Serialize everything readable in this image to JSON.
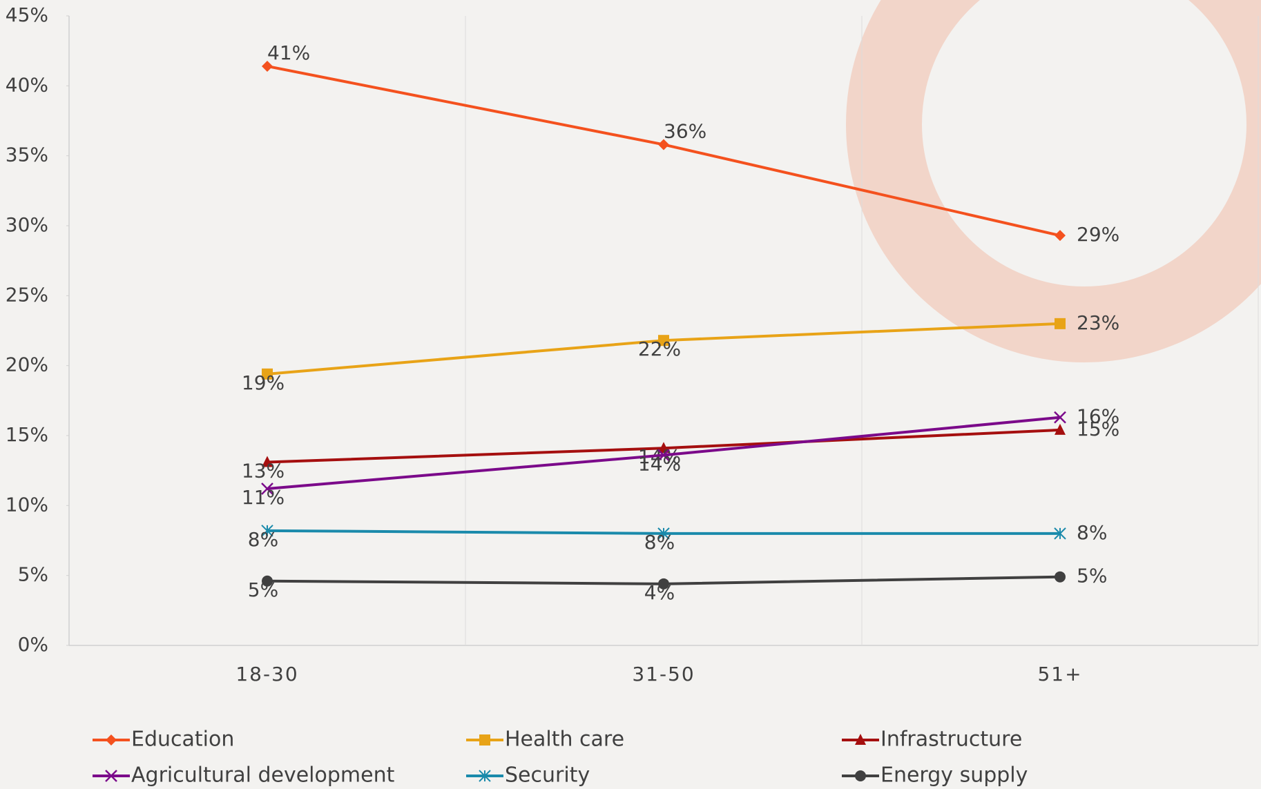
{
  "chart_data": {
    "type": "line",
    "categories": [
      "18-30",
      "31-50",
      "51+"
    ],
    "ylim": [
      0,
      45
    ],
    "yticks": [
      {
        "value": 0,
        "label": "0%"
      },
      {
        "value": 5,
        "label": "5%"
      },
      {
        "value": 10,
        "label": "10%"
      },
      {
        "value": 15,
        "label": "15%"
      },
      {
        "value": 20,
        "label": "20%"
      },
      {
        "value": 25,
        "label": "25%"
      },
      {
        "value": 30,
        "label": "30%"
      },
      {
        "value": 35,
        "label": "35%"
      },
      {
        "value": 40,
        "label": "40%"
      },
      {
        "value": 45,
        "label": "45%"
      }
    ],
    "legend": "bottom",
    "series": [
      {
        "name": "Education",
        "color": "#f4511e",
        "marker": "diamond",
        "values": [
          41.4,
          35.8,
          29.3
        ],
        "value_labels": [
          "41%",
          "36%",
          "29%"
        ]
      },
      {
        "name": "Health care",
        "color": "#e8a317",
        "marker": "square",
        "values": [
          19.4,
          21.8,
          23.0
        ],
        "value_labels": [
          "19%",
          "22%",
          "23%"
        ]
      },
      {
        "name": "Infrastructure",
        "color": "#a50f0f",
        "marker": "triangle",
        "values": [
          13.1,
          14.1,
          15.4
        ],
        "value_labels": [
          "13%",
          "14%",
          "15%"
        ]
      },
      {
        "name": "Agricultural development",
        "color": "#7b0a8a",
        "marker": "x",
        "values": [
          11.2,
          13.6,
          16.3
        ],
        "value_labels": [
          "11%",
          "14%",
          "16%"
        ]
      },
      {
        "name": "Security",
        "color": "#1a8aab",
        "marker": "star",
        "values": [
          8.2,
          8.0,
          8.0
        ],
        "value_labels": [
          "8%",
          "8%",
          "8%"
        ]
      },
      {
        "name": "Energy supply",
        "color": "#404040",
        "marker": "circle",
        "values": [
          4.6,
          4.4,
          4.9
        ],
        "value_labels": [
          "5%",
          "4%",
          "5%"
        ]
      }
    ]
  }
}
